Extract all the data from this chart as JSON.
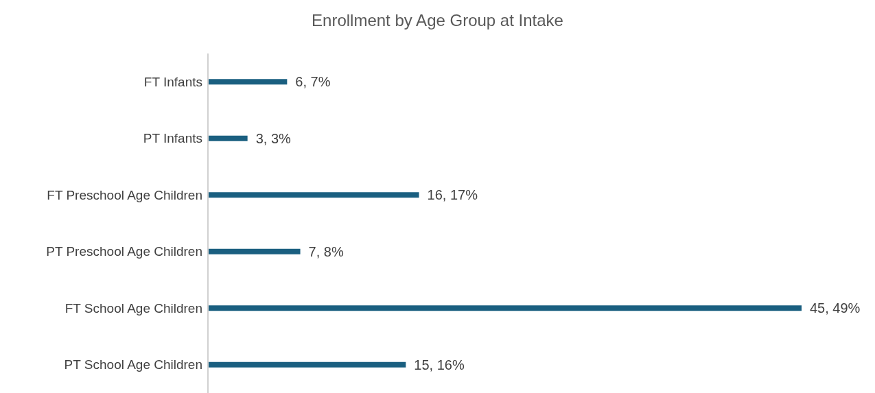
{
  "chart_data": {
    "type": "bar",
    "orientation": "horizontal",
    "title": "Enrollment by Age Group at Intake",
    "categories": [
      "FT Infants",
      "PT Infants",
      "FT Preschool Age Children",
      "PT Preschool Age Children",
      "FT School Age Children",
      "PT School Age Children"
    ],
    "values": [
      6,
      3,
      16,
      7,
      45,
      15
    ],
    "value_labels": [
      "6, 7%",
      "3, 3%",
      "16, 17%",
      "7, 8%",
      "45, 49%",
      "15, 16%"
    ],
    "color": "#1a5f80",
    "grid": false,
    "legend": false
  }
}
